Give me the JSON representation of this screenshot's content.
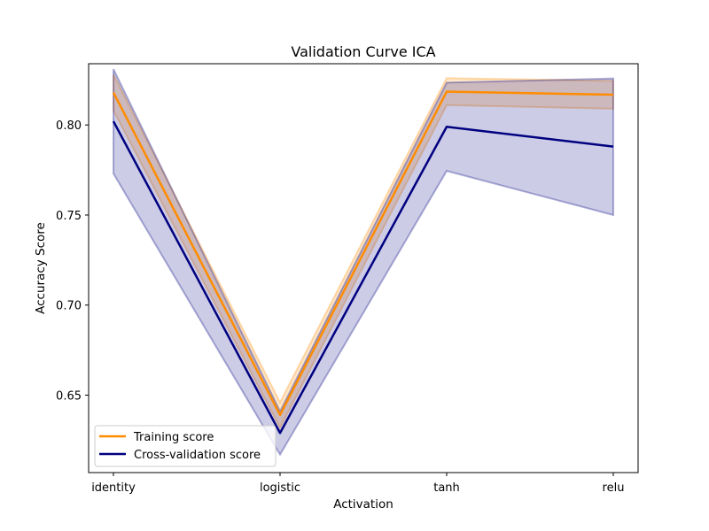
{
  "chart_data": {
    "type": "line",
    "title": "Validation Curve ICA",
    "xlabel": "Activation",
    "ylabel": "Accuracy Score",
    "categories": [
      "identity",
      "logistic",
      "tanh",
      "relu"
    ],
    "ylim": [
      0.607,
      0.834
    ],
    "yticks": [
      0.65,
      0.7,
      0.75,
      0.8
    ],
    "ytick_labels": [
      "0.65",
      "0.70",
      "0.75",
      "0.80"
    ],
    "grid": false,
    "legend_position": "lower-left",
    "series": [
      {
        "name": "Training score",
        "color": "#ff8c00",
        "values": [
          0.818,
          0.639,
          0.8185,
          0.8168
        ],
        "band_lower": [
          0.808,
          0.632,
          0.811,
          0.809
        ],
        "band_upper": [
          0.828,
          0.646,
          0.826,
          0.8245
        ],
        "band_alpha": 0.2
      },
      {
        "name": "Cross-validation score",
        "color": "#000080",
        "values": [
          0.802,
          0.629,
          0.799,
          0.788
        ],
        "band_lower": [
          0.773,
          0.617,
          0.7745,
          0.75
        ],
        "band_upper": [
          0.831,
          0.641,
          0.8235,
          0.8258
        ],
        "band_alpha": 0.2
      }
    ]
  }
}
